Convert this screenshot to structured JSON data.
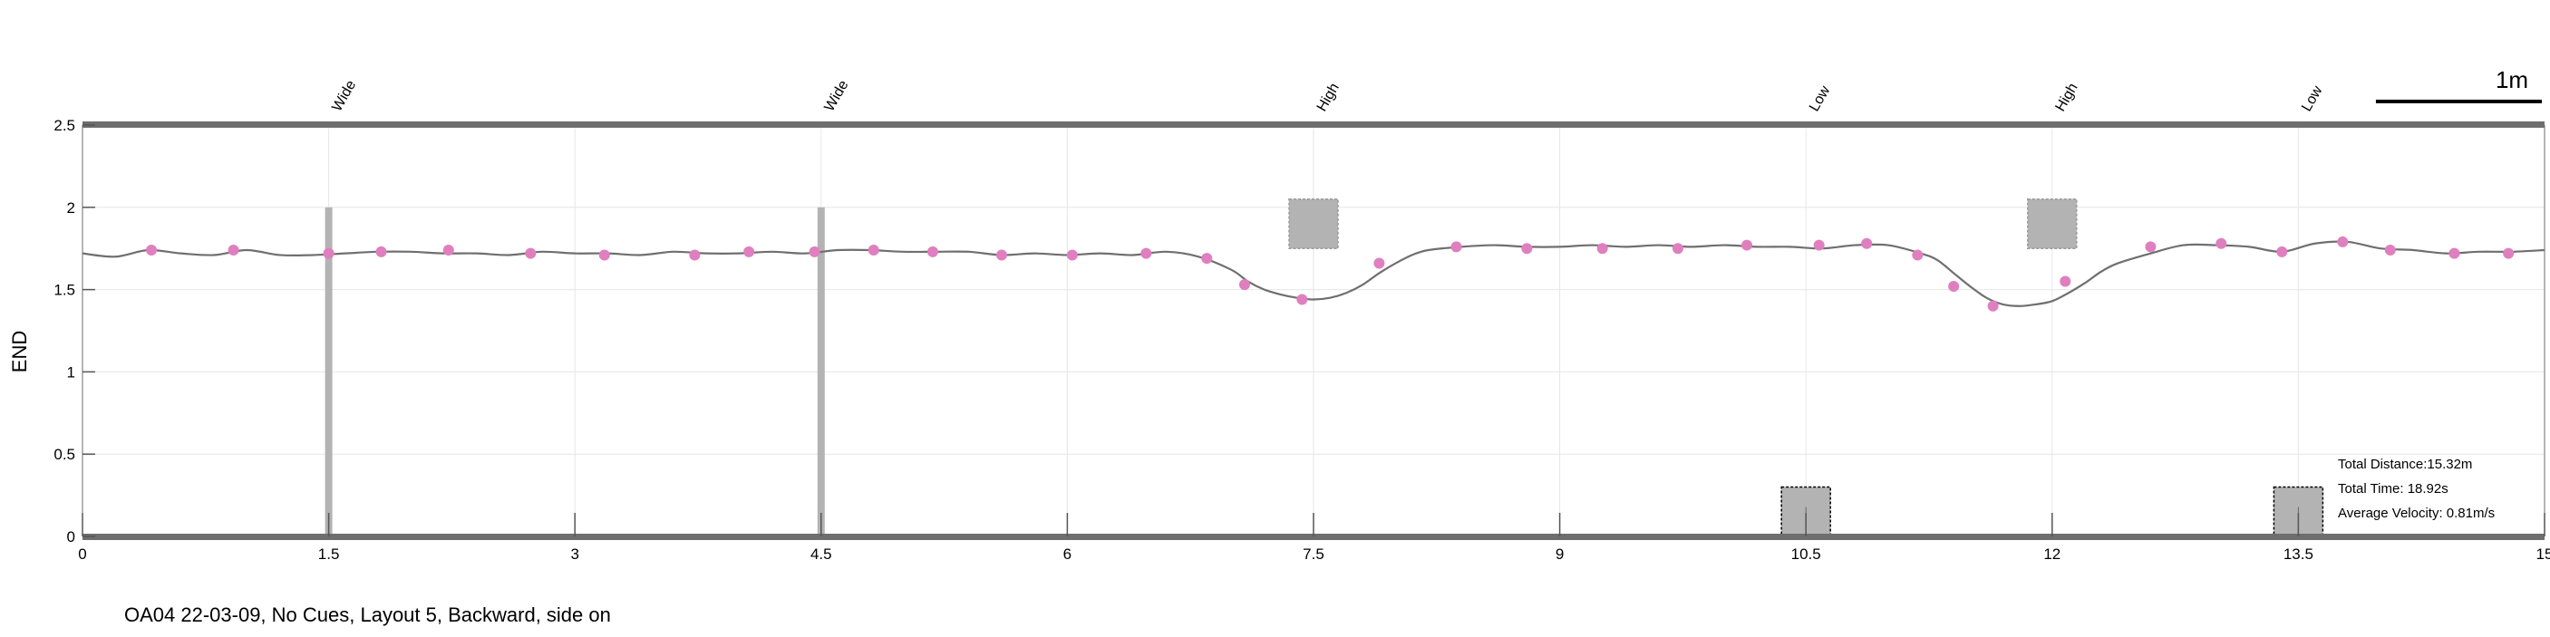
{
  "chart_data": {
    "type": "line",
    "title": "",
    "xlabel": "",
    "ylabel": "END",
    "xlim": [
      0,
      15
    ],
    "ylim": [
      0,
      2.5
    ],
    "x_ticks": [
      0,
      1.5,
      3,
      4.5,
      6,
      7.5,
      9,
      10.5,
      12,
      13.5,
      15
    ],
    "x_tick_labels": [
      "0",
      "1.5",
      "3",
      "4.5",
      "6",
      "7.5",
      "9",
      "10.5",
      "12",
      "13.5",
      "15"
    ],
    "y_ticks": [
      0,
      0.5,
      1,
      1.5,
      2,
      2.5
    ],
    "y_tick_labels": [
      "0",
      "0.5",
      "1",
      "1.5",
      "2",
      "2.5"
    ],
    "grid": true,
    "line_color": "#6f6f6f",
    "marker_color": "#e07fbf",
    "obstacle_color": "#b3b3b3",
    "trajectory": {
      "x": [
        0,
        0.2,
        0.4,
        0.6,
        0.8,
        1.0,
        1.2,
        1.4,
        1.6,
        1.8,
        2.0,
        2.2,
        2.4,
        2.6,
        2.8,
        3.0,
        3.2,
        3.4,
        3.6,
        3.8,
        4.0,
        4.2,
        4.4,
        4.6,
        4.8,
        5.0,
        5.2,
        5.4,
        5.6,
        5.8,
        6.0,
        6.2,
        6.4,
        6.6,
        6.8,
        7.0,
        7.1,
        7.2,
        7.3,
        7.4,
        7.5,
        7.6,
        7.7,
        7.8,
        7.9,
        8.0,
        8.1,
        8.2,
        8.4,
        8.6,
        8.8,
        9.0,
        9.2,
        9.4,
        9.6,
        9.8,
        10.0,
        10.2,
        10.4,
        10.6,
        10.8,
        11.0,
        11.2,
        11.3,
        11.4,
        11.5,
        11.6,
        11.7,
        11.8,
        11.9,
        12.0,
        12.1,
        12.2,
        12.3,
        12.4,
        12.6,
        12.8,
        13.0,
        13.2,
        13.4,
        13.6,
        13.8,
        14.0,
        14.2,
        14.4,
        14.6,
        14.8,
        15.0
      ],
      "y": [
        1.72,
        1.7,
        1.74,
        1.72,
        1.71,
        1.74,
        1.71,
        1.71,
        1.72,
        1.73,
        1.73,
        1.72,
        1.72,
        1.71,
        1.73,
        1.72,
        1.72,
        1.71,
        1.73,
        1.72,
        1.72,
        1.73,
        1.72,
        1.74,
        1.74,
        1.73,
        1.73,
        1.73,
        1.71,
        1.72,
        1.71,
        1.72,
        1.71,
        1.73,
        1.7,
        1.62,
        1.55,
        1.5,
        1.47,
        1.45,
        1.44,
        1.45,
        1.48,
        1.53,
        1.6,
        1.66,
        1.71,
        1.74,
        1.76,
        1.77,
        1.76,
        1.76,
        1.77,
        1.76,
        1.77,
        1.76,
        1.77,
        1.76,
        1.76,
        1.75,
        1.77,
        1.77,
        1.72,
        1.68,
        1.6,
        1.52,
        1.45,
        1.41,
        1.4,
        1.41,
        1.43,
        1.48,
        1.54,
        1.61,
        1.66,
        1.72,
        1.77,
        1.77,
        1.76,
        1.73,
        1.78,
        1.79,
        1.75,
        1.74,
        1.72,
        1.73,
        1.73,
        1.74
      ],
      "marker_x": [
        0.42,
        0.92,
        1.5,
        1.82,
        2.23,
        2.73,
        3.18,
        3.73,
        4.06,
        4.46,
        4.82,
        5.18,
        5.6,
        6.03,
        6.48,
        6.85,
        7.08,
        7.43,
        7.9,
        8.37,
        8.8,
        9.26,
        9.72,
        10.14,
        10.58,
        10.87,
        11.18,
        11.4,
        11.64,
        12.08,
        12.6,
        13.03,
        13.4,
        13.77,
        14.06,
        14.45,
        14.78
      ],
      "marker_y": [
        1.74,
        1.74,
        1.72,
        1.73,
        1.74,
        1.72,
        1.71,
        1.71,
        1.73,
        1.73,
        1.74,
        1.73,
        1.71,
        1.71,
        1.72,
        1.69,
        1.53,
        1.44,
        1.66,
        1.76,
        1.75,
        1.75,
        1.75,
        1.77,
        1.77,
        1.78,
        1.71,
        1.52,
        1.4,
        1.55,
        1.76,
        1.78,
        1.73,
        1.79,
        1.74,
        1.72,
        1.72
      ]
    },
    "obstacles": [
      {
        "label": "Wide",
        "x": 1.5,
        "kind": "pole",
        "y_range": [
          0,
          2.0
        ]
      },
      {
        "label": "Wide",
        "x": 4.5,
        "kind": "pole",
        "y_range": [
          0,
          2.0
        ]
      },
      {
        "label": "High",
        "x": 7.5,
        "kind": "high",
        "y_range": [
          1.75,
          2.05
        ]
      },
      {
        "label": "Low",
        "x": 10.5,
        "kind": "low",
        "y_range": [
          0,
          0.3
        ]
      },
      {
        "label": "High",
        "x": 12.0,
        "kind": "high",
        "y_range": [
          1.75,
          2.05
        ]
      },
      {
        "label": "Low",
        "x": 13.5,
        "kind": "low",
        "y_range": [
          0,
          0.3
        ]
      }
    ],
    "scale_bar": {
      "label": "1m",
      "length_x": 1.0
    }
  },
  "stats": {
    "distance": "Total Distance:15.32m",
    "time": "Total Time: 18.92s",
    "velocity": "Average Velocity: 0.81m/s"
  },
  "caption": "OA04 22-03-09, No Cues, Layout 5, Backward, side on"
}
